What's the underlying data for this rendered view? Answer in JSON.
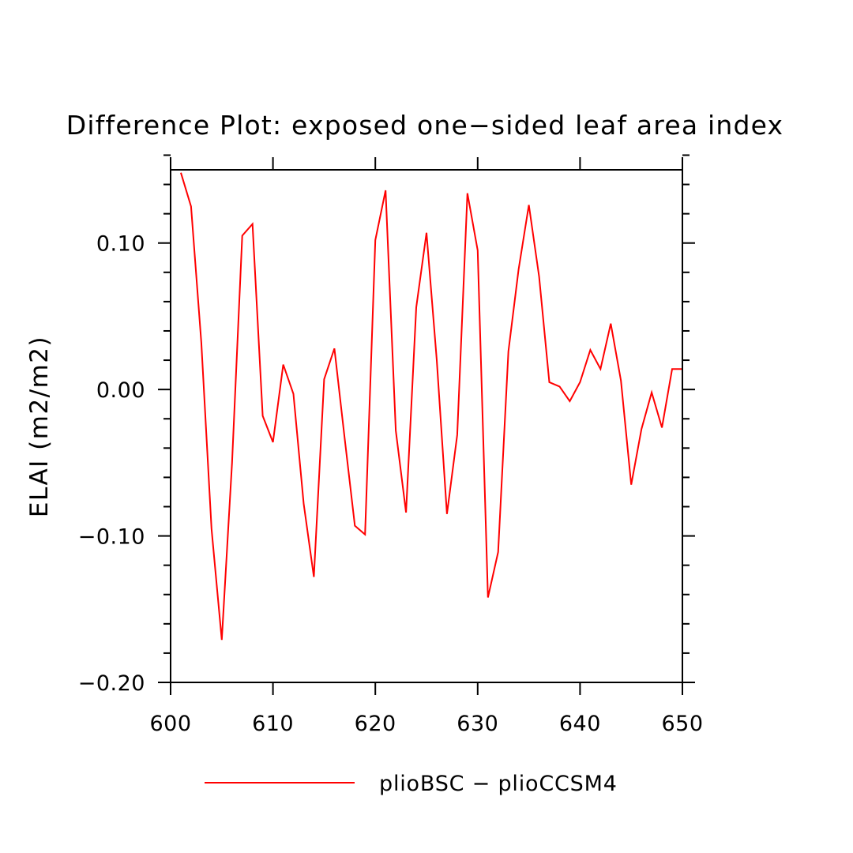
{
  "chart_data": {
    "type": "line",
    "title": "Difference Plot: exposed one−sided leaf area index",
    "xlabel": "",
    "ylabel": "ELAI  (m2/m2)",
    "xlim": [
      600,
      650
    ],
    "ylim": [
      -0.2,
      0.15
    ],
    "x_ticks": [
      600,
      610,
      620,
      630,
      640,
      650
    ],
    "x_tick_labels": [
      "600",
      "610",
      "620",
      "630",
      "640",
      "650"
    ],
    "y_ticks": [
      -0.2,
      -0.1,
      0.0,
      0.1
    ],
    "y_tick_labels": [
      "−0.20",
      "−0.10",
      "0.00",
      "0.10"
    ],
    "grid": false,
    "legend_position": "bottom",
    "series": [
      {
        "name": "plioBSC − plioCCSM4",
        "color": "#ff0000",
        "x": [
          601,
          602,
          603,
          604,
          605,
          606,
          607,
          608,
          609,
          610,
          611,
          612,
          613,
          614,
          615,
          616,
          617,
          618,
          619,
          620,
          621,
          622,
          623,
          624,
          625,
          626,
          627,
          628,
          629,
          630,
          631,
          632,
          633,
          634,
          635,
          636,
          637,
          638,
          639,
          640,
          641,
          642,
          643,
          644,
          645,
          646,
          647,
          648,
          649,
          650
        ],
        "y": [
          0.148,
          0.125,
          0.032,
          -0.095,
          -0.171,
          -0.05,
          0.105,
          0.113,
          -0.018,
          -0.036,
          0.017,
          -0.003,
          -0.078,
          -0.128,
          0.007,
          0.028,
          -0.033,
          -0.093,
          -0.099,
          0.102,
          0.136,
          -0.028,
          -0.084,
          0.056,
          0.107,
          0.02,
          -0.085,
          -0.031,
          0.134,
          0.095,
          -0.142,
          -0.111,
          0.026,
          0.082,
          0.126,
          0.077,
          0.005,
          0.002,
          -0.008,
          0.005,
          0.027,
          0.014,
          0.045,
          0.006,
          -0.065,
          -0.027,
          -0.002,
          -0.026,
          0.014,
          0.014
        ]
      }
    ]
  }
}
